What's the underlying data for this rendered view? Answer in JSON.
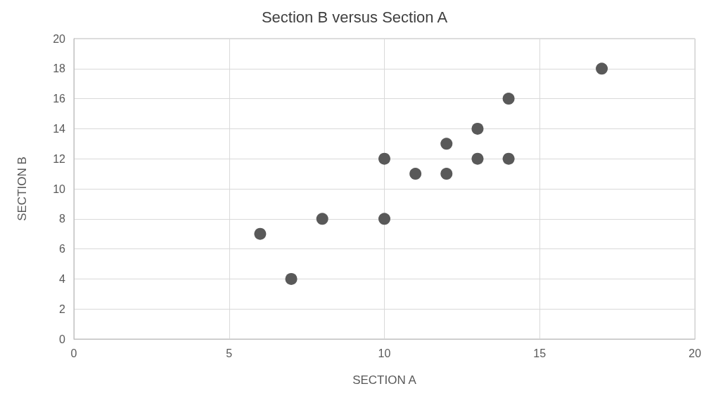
{
  "chart_data": {
    "type": "scatter",
    "title": "Section B versus Section A",
    "xlabel": "SECTION A",
    "ylabel": "SECTION B",
    "x": [
      6,
      7,
      8,
      10,
      10,
      11,
      12,
      12,
      13,
      13,
      14,
      14,
      17
    ],
    "series": [
      {
        "color": "#595959",
        "values": [
          7,
          4,
          8,
          8,
          12,
          11,
          11,
          13,
          12,
          14,
          12,
          16,
          18
        ]
      }
    ],
    "xlim": [
      0,
      20
    ],
    "xticks": [
      0,
      5,
      10,
      15,
      20
    ],
    "ylim": [
      0,
      20
    ],
    "yticks": [
      0,
      2,
      4,
      6,
      8,
      10,
      12,
      14,
      16,
      18,
      20
    ],
    "grid": true,
    "marker": "circle"
  }
}
